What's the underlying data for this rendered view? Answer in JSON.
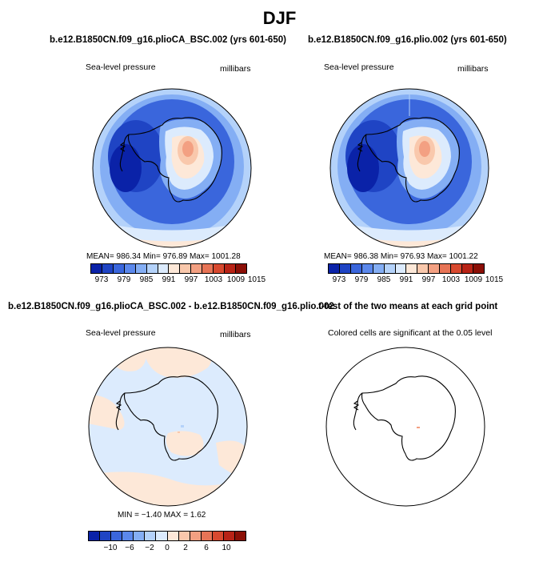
{
  "title": "DJF",
  "colors": {
    "slp_palette": [
      "#0a22a8",
      "#1f44c4",
      "#3a66dc",
      "#5b88ec",
      "#84aef4",
      "#b4d2fa",
      "#dcebfd",
      "#fde8d8",
      "#f9c8ac",
      "#f3a082",
      "#e77456",
      "#d8492f",
      "#b82316",
      "#8b0f06"
    ],
    "diff_palette": [
      "#0a22a8",
      "#1f44c4",
      "#3a66dc",
      "#5b88ec",
      "#84aef4",
      "#b4d2fa",
      "#dcebfd",
      "#fde8d8",
      "#f9c8ac",
      "#f3a082",
      "#e77456",
      "#d8492f",
      "#b82316",
      "#8b0f06"
    ],
    "positive_fill": "#fde8d8",
    "negative_fill": "#dcebfd",
    "significant_cell": "#f3a082"
  },
  "panels": [
    {
      "title": "b.e12.B1850CN.f09_g16.plioCA_BSC.002 (yrs 601-650)",
      "left_label": "Sea-level pressure",
      "right_label": "millibars",
      "stats": "MEAN=  986.34   Min=  976.89   Max=  1001.28",
      "colorbar_ticks": [
        "973",
        "979",
        "985",
        "991",
        "997",
        "1003",
        "1009",
        "1015"
      ]
    },
    {
      "title": "b.e12.B1850CN.f09_g16.plio.002 (yrs 601-650)",
      "left_label": "Sea-level pressure",
      "right_label": "millibars",
      "stats": "MEAN=  986.38   Min=  976.93   Max=  1001.22",
      "colorbar_ticks": [
        "973",
        "979",
        "985",
        "991",
        "997",
        "1003",
        "1009",
        "1015"
      ]
    },
    {
      "title": "b.e12.B1850CN.f09_g16.plioCA_BSC.002 - b.e12.B1850CN.f09_g16.plio.002",
      "left_label": "Sea-level pressure",
      "right_label": "millibars",
      "stats": "MIN =  −1.40  MAX =   1.62",
      "colorbar_ticks": [
        "−10",
        "−6",
        "−2",
        "0",
        "2",
        "6",
        "10"
      ]
    },
    {
      "title": "t-test of the two means at each grid point",
      "left_label": "Colored cells are significant at the 0.05 level"
    }
  ]
}
